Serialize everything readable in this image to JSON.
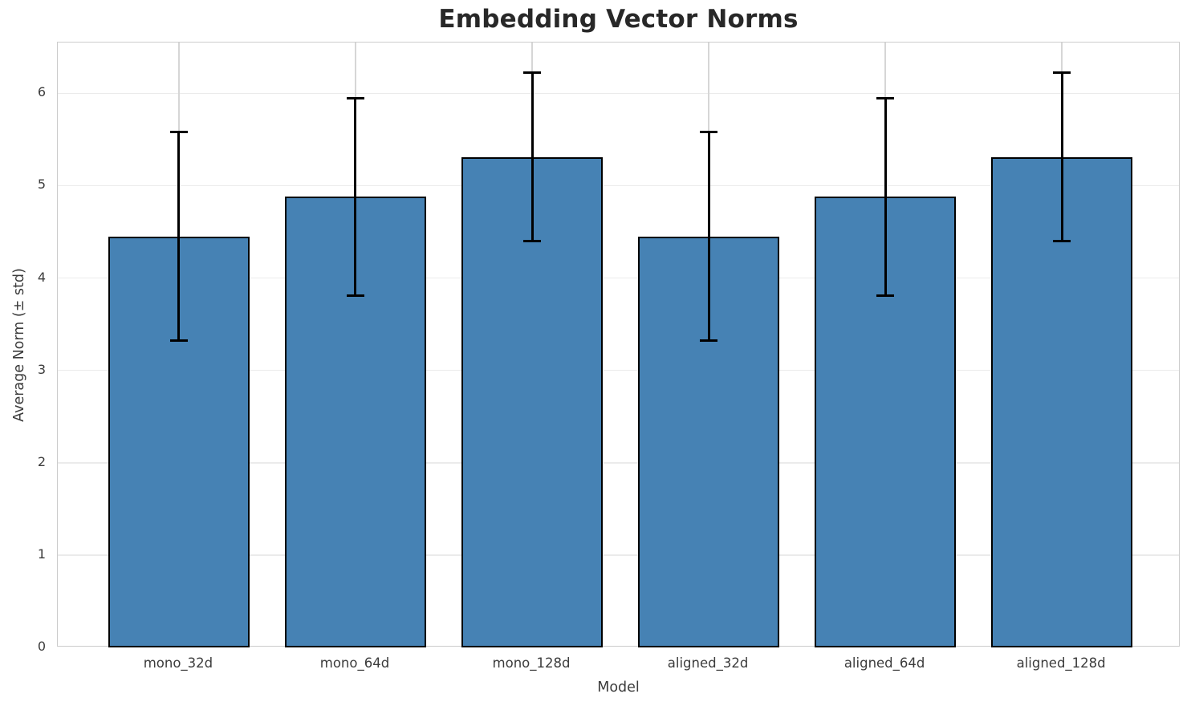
{
  "chart_data": {
    "type": "bar",
    "title": "Embedding Vector Norms",
    "xlabel": "Model",
    "ylabel": "Average Norm (± std)",
    "categories": [
      "mono_32d",
      "mono_64d",
      "mono_128d",
      "aligned_32d",
      "aligned_64d",
      "aligned_128d"
    ],
    "series": [
      {
        "name": "Average Norm",
        "values": [
          4.45,
          4.88,
          5.31,
          4.45,
          4.88,
          5.31
        ],
        "errors": [
          1.13,
          1.07,
          0.91,
          1.13,
          1.07,
          0.91
        ]
      }
    ],
    "ytick_labels": [
      "0",
      "1",
      "2",
      "3",
      "4",
      "5",
      "6"
    ],
    "ylim": [
      0,
      6.55
    ],
    "grid": true,
    "legend": "none",
    "error_caps": true,
    "colors": {
      "bar_fill": "#4682b4",
      "bar_edge": "#000000",
      "error": "#000000",
      "grid_horizontal": "#ebebeb",
      "grid_vertical": "#d6d6d6",
      "spine": "#cccccc",
      "tick_text": "#3c3c3c",
      "title_text": "#282828"
    }
  }
}
